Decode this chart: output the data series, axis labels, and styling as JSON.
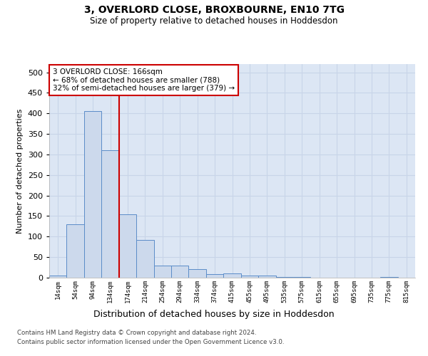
{
  "title": "3, OVERLORD CLOSE, BROXBOURNE, EN10 7TG",
  "subtitle": "Size of property relative to detached houses in Hoddesdon",
  "xlabel": "Distribution of detached houses by size in Hoddesdon",
  "ylabel": "Number of detached properties",
  "categories": [
    "14sqm",
    "54sqm",
    "94sqm",
    "134sqm",
    "174sqm",
    "214sqm",
    "254sqm",
    "294sqm",
    "334sqm",
    "374sqm",
    "415sqm",
    "455sqm",
    "495sqm",
    "535sqm",
    "575sqm",
    "615sqm",
    "655sqm",
    "695sqm",
    "735sqm",
    "775sqm",
    "815sqm"
  ],
  "values": [
    5,
    130,
    405,
    310,
    155,
    92,
    30,
    30,
    20,
    8,
    11,
    5,
    6,
    2,
    1,
    0,
    0,
    0,
    0,
    2,
    0
  ],
  "bar_color": "#ccd9ec",
  "bar_edge_color": "#5b8cc8",
  "vline_x_index": 3.5,
  "vline_color": "#cc0000",
  "annotation_box_text": "3 OVERLORD CLOSE: 166sqm\n← 68% of detached houses are smaller (788)\n32% of semi-detached houses are larger (379) →",
  "annotation_box_color": "#cc0000",
  "annotation_box_facecolor": "white",
  "grid_color": "#c8d4e8",
  "background_color": "#dce6f4",
  "ylim": [
    0,
    520
  ],
  "yticks": [
    0,
    50,
    100,
    150,
    200,
    250,
    300,
    350,
    400,
    450,
    500
  ],
  "footer_line1": "Contains HM Land Registry data © Crown copyright and database right 2024.",
  "footer_line2": "Contains public sector information licensed under the Open Government Licence v3.0."
}
